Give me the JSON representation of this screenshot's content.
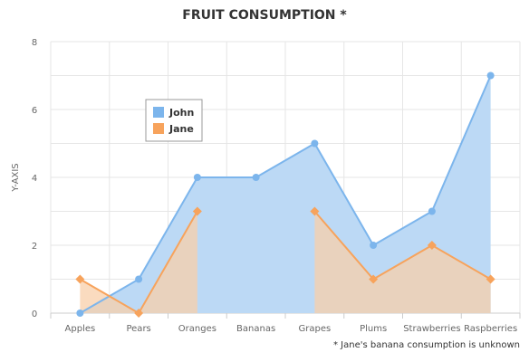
{
  "chart_data": {
    "type": "area",
    "title": "FRUIT CONSUMPTION *",
    "ylabel": "Y-AXIS",
    "xlabel": "",
    "ylim": [
      0,
      8
    ],
    "yticks": [
      0,
      2,
      4,
      6,
      8
    ],
    "categories": [
      "Apples",
      "Pears",
      "Oranges",
      "Bananas",
      "Grapes",
      "Plums",
      "Strawberries",
      "Raspberries"
    ],
    "series": [
      {
        "name": "John",
        "color": "#7cb5ec",
        "fill": "#bcd9f5",
        "values": [
          0,
          1,
          4,
          4,
          5,
          2,
          3,
          7
        ]
      },
      {
        "name": "Jane",
        "color": "#f7a35c",
        "fill": "#f8cfa9",
        "values": [
          1,
          0,
          3,
          null,
          3,
          1,
          2,
          1
        ]
      }
    ],
    "legend_position": "top-left",
    "grid": true,
    "footnote": "* Jane's banana consumption is unknown"
  }
}
